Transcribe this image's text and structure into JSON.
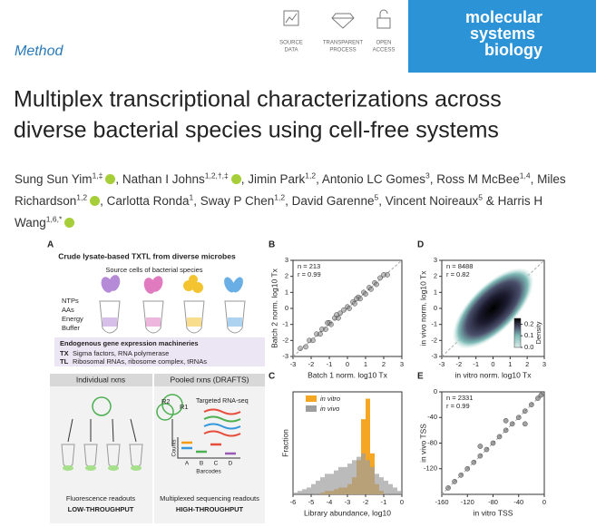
{
  "header": {
    "section": "Method",
    "badges": [
      [
        "SOURCE",
        "DATA"
      ],
      [
        "TRANSPARENT",
        "PROCESS"
      ],
      [
        "OPEN",
        "ACCESS"
      ]
    ],
    "journal": [
      "molecular",
      "systems",
      "biology"
    ]
  },
  "title_lines": [
    "Multiplex transcriptional characterizations across",
    "diverse bacterial species using cell-free systems"
  ],
  "authors": {
    "delimiter": ",",
    "last_delimiter": "&",
    "list": [
      {
        "name": "Sung Sun Yim",
        "sup": "1,‡",
        "orcid": true
      },
      {
        "name": "Nathan I Johns",
        "sup": "1,2,†,‡",
        "orcid": true
      },
      {
        "name": "Jimin Park",
        "sup": "1,2",
        "orcid": false
      },
      {
        "name": "Antonio LC Gomes",
        "sup": "3",
        "orcid": false
      },
      {
        "name": "Ross M McBee",
        "sup": "1,4",
        "orcid": false
      },
      {
        "name": "Miles Richardson",
        "sup": "1,2",
        "orcid": true
      },
      {
        "name": "Carlotta Ronda",
        "sup": "1",
        "orcid": false
      },
      {
        "name": "Sway P Chen",
        "sup": "1,2",
        "orcid": false
      },
      {
        "name": "David Garenne",
        "sup": "5",
        "orcid": false
      },
      {
        "name": "Vincent Noireaux",
        "sup": "5",
        "orcid": false
      },
      {
        "name": "Harris H Wang",
        "sup": "1,6,*",
        "orcid": true
      }
    ]
  },
  "panel_a": {
    "letter": "A",
    "title": "Crude lysate-based TXTL from diverse microbes",
    "subtitle": "Source cells of bacterial species",
    "reagents": [
      "NTPs",
      "AAs",
      "Energy",
      "Buffer"
    ],
    "machinery_title": "Endogenous gene expression machineries",
    "machinery": [
      {
        "key": "TX",
        "text": "Sigma factors, RNA polymerase"
      },
      {
        "key": "TL",
        "text": "Ribosomal RNAs, ribosome complex, tRNAs"
      }
    ],
    "left": {
      "title": "Individual rxns",
      "readout": "Fluorescence readouts",
      "throughput": "LOW-THROUGHPUT"
    },
    "right": {
      "title": "Pooled rxns (DRAFTS)",
      "method": "Targeted RNA-seq",
      "reads": [
        "R2",
        "R1"
      ],
      "ylabel": "Counts",
      "barcodes": [
        "A",
        "B",
        "C",
        "D"
      ],
      "xlabel": "Barcodes",
      "readout": "Multiplexed sequencing readouts",
      "throughput": "HIGH-THROUGHPUT"
    }
  },
  "chart_data": [
    {
      "type": "scatter",
      "panel": "B",
      "color": "#888888",
      "xlabel": "Batch 1 norm. log10 Tx",
      "ylabel": "Batch 2 norm. log10 Tx",
      "annotations": [
        "n = 213",
        "r = 0.99"
      ],
      "identity_line": true,
      "x": [
        -2.6,
        -2.3,
        -2.1,
        -1.9,
        -1.7,
        -1.5,
        -1.4,
        -1.2,
        -1.0,
        -0.9,
        -0.7,
        -0.5,
        -0.4,
        -0.2,
        0.0,
        0.1,
        0.3,
        0.4,
        0.6,
        0.7,
        0.9,
        1.0,
        1.2,
        1.3,
        1.5,
        1.6,
        1.8,
        2.0,
        2.2,
        -0.6,
        0.5,
        -1.1
      ],
      "y": [
        -2.5,
        -2.4,
        -2.0,
        -2.0,
        -1.6,
        -1.6,
        -1.3,
        -1.3,
        -0.9,
        -1.0,
        -0.6,
        -0.6,
        -0.3,
        -0.1,
        0.1,
        0.0,
        0.4,
        0.3,
        0.7,
        0.6,
        1.0,
        0.9,
        1.3,
        1.2,
        1.6,
        1.5,
        1.9,
        2.1,
        2.1,
        -0.4,
        0.6,
        -0.9
      ],
      "xlim": [
        -3,
        3
      ],
      "ylim": [
        -3,
        3
      ],
      "xticks": [
        -3,
        -2,
        -1,
        0,
        1,
        2,
        3
      ],
      "yticks": [
        -3,
        -2,
        -1,
        0,
        1,
        2,
        3
      ]
    },
    {
      "type": "histogram",
      "panel": "C",
      "xlabel": "Library abundance, log10",
      "ylabel": "Fraction",
      "bins": [
        -6,
        -5.75,
        -5.5,
        -5.25,
        -5,
        -4.75,
        -4.5,
        -4.25,
        -4,
        -3.75,
        -3.5,
        -3.25,
        -3,
        -2.75,
        -2.5,
        -2.25,
        -2,
        -1.75,
        -1.5,
        -1.25,
        -1,
        -0.75,
        -0.5,
        -0.25,
        0
      ],
      "series": [
        {
          "name": "in vitro",
          "color": "#f5a623",
          "values": [
            0,
            0,
            0,
            0,
            0,
            0,
            0.005,
            0.01,
            0.01,
            0.015,
            0.02,
            0.02,
            0.03,
            0.05,
            0.1,
            0.22,
            0.28,
            0.12,
            0.03,
            0.01,
            0,
            0,
            0,
            0
          ]
        },
        {
          "name": "in vivo",
          "color": "#9e9e9e",
          "values": [
            0.005,
            0.01,
            0.015,
            0.02,
            0.03,
            0.04,
            0.05,
            0.06,
            0.06,
            0.07,
            0.08,
            0.08,
            0.09,
            0.1,
            0.11,
            0.12,
            0.1,
            0.08,
            0.06,
            0.05,
            0.04,
            0.03,
            0.02,
            0.01
          ]
        }
      ],
      "xlim": [
        -6,
        0
      ],
      "ylim": [
        0,
        0.3
      ],
      "xticks": [
        -6,
        -5,
        -4,
        -3,
        -2,
        -1,
        0
      ]
    },
    {
      "type": "density",
      "panel": "D",
      "xlabel": "in vitro norm. log10 Tx",
      "ylabel": "in vivo norm. log10 Tx",
      "annotations": [
        "n = 8488",
        "r = 0.82"
      ],
      "identity_line": true,
      "cbar_label": "Density",
      "cbar_lim": [
        0,
        0.25
      ],
      "cbar_ticks": [
        {
          "value": 0,
          "label": "0.0"
        },
        0.1,
        0.2
      ],
      "xlim": [
        -3,
        3
      ],
      "ylim": [
        -3,
        3
      ],
      "xticks": [
        -3,
        -2,
        -1,
        0,
        1,
        2,
        3
      ],
      "yticks": [
        -3,
        -2,
        -1,
        0,
        1,
        2,
        3
      ]
    },
    {
      "type": "scatter",
      "panel": "E",
      "color": "#555555",
      "xlabel": "in vitro TSS",
      "ylabel": "in vivo TSS",
      "annotations": [
        "n = 2331",
        "r = 0.99"
      ],
      "identity_line": true,
      "x": [
        -150,
        -140,
        -130,
        -120,
        -110,
        -100,
        -90,
        -80,
        -70,
        -60,
        -50,
        -40,
        -30,
        -20,
        -10,
        -5,
        -60,
        -30,
        -100
      ],
      "y": [
        -150,
        -140,
        -130,
        -120,
        -110,
        -100,
        -90,
        -80,
        -70,
        -60,
        -50,
        -40,
        -30,
        -20,
        -10,
        -5,
        -45,
        -50,
        -85
      ],
      "xlim": [
        -160,
        0
      ],
      "ylim": [
        -160,
        0
      ],
      "xticks": [
        -160,
        -120,
        -80,
        -40,
        0
      ],
      "yticks": [
        -120,
        -80,
        -40,
        0
      ]
    }
  ]
}
